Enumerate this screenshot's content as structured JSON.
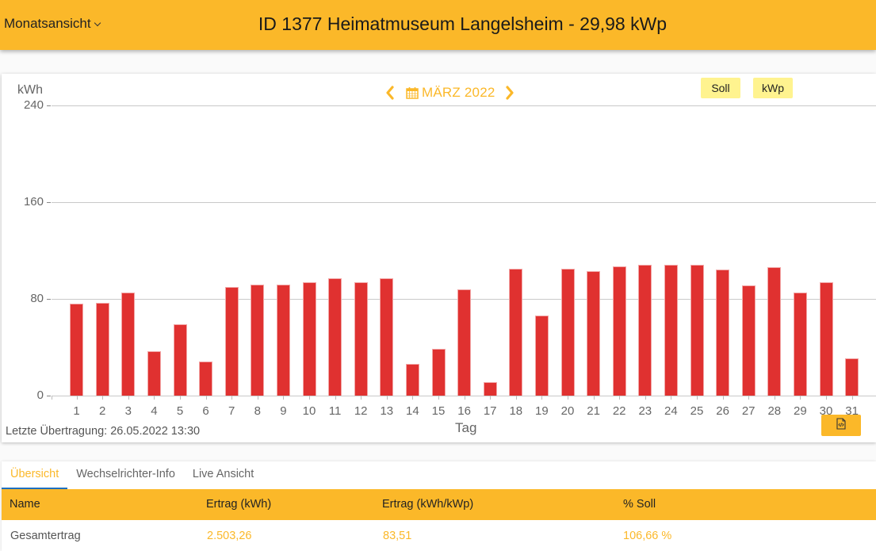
{
  "header": {
    "view_select": "Monatsansicht",
    "title": "ID 1377 Heimatmuseum Langelsheim - 29,98 kWp"
  },
  "chart_nav": {
    "prev_icon": "chevron-left-icon",
    "calendar_icon": "calendar-icon",
    "month": "MÄRZ 2022",
    "next_icon": "chevron-right-icon"
  },
  "legend": {
    "soll": "Soll",
    "kwp": "kWp"
  },
  "footer": {
    "last_update": "Letzte Übertragung: 26.05.2022 13:30",
    "export_icon": "code-file-icon"
  },
  "colors": {
    "brand": "#fbb829",
    "bar": "#e03130",
    "legend_bg": "#fff38f",
    "tab_indicator": "#1e6fbf"
  },
  "chart_data": {
    "type": "bar",
    "title": "MÄRZ 2022",
    "xlabel": "Tag",
    "ylabel": "kWh",
    "ylim": [
      0,
      240
    ],
    "yticks": [
      0,
      80,
      160,
      240
    ],
    "grid": true,
    "legend": [
      "Soll",
      "kWp"
    ],
    "legend_position": "top-right",
    "categories": [
      "1",
      "2",
      "3",
      "4",
      "5",
      "6",
      "7",
      "8",
      "9",
      "10",
      "11",
      "12",
      "13",
      "14",
      "15",
      "16",
      "17",
      "18",
      "19",
      "20",
      "21",
      "22",
      "23",
      "24",
      "25",
      "26",
      "27",
      "28",
      "29",
      "30",
      "31"
    ],
    "series": [
      {
        "name": "Ertrag (kWh)",
        "color": "#e03130",
        "values": [
          76,
          77,
          85,
          37,
          59,
          28,
          90,
          92,
          92,
          94,
          97,
          94,
          97,
          26,
          39,
          88,
          11,
          105,
          66,
          105,
          103,
          107,
          108,
          108,
          108,
          104,
          91,
          106,
          85,
          94,
          31
        ]
      }
    ]
  },
  "tabs": [
    {
      "label": "Übersicht",
      "active": true
    },
    {
      "label": "Wechselrichter-Info",
      "active": false
    },
    {
      "label": "Live Ansicht",
      "active": false
    }
  ],
  "table": {
    "columns": [
      "Name",
      "Ertrag (kWh)",
      "Ertrag (kWh/kWp)",
      "% Soll"
    ],
    "rows": [
      [
        "Gesamtertrag",
        "2.503,26",
        "83,51",
        "106,66 %"
      ]
    ]
  }
}
